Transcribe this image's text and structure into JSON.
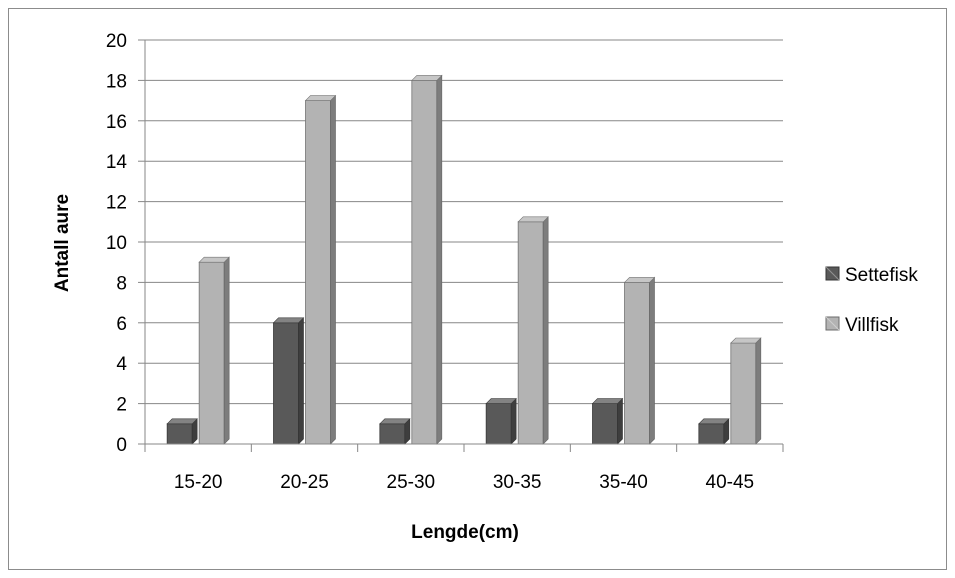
{
  "chart_data": {
    "type": "bar",
    "categories": [
      "15-20",
      "20-25",
      "25-30",
      "30-35",
      "35-40",
      "40-45"
    ],
    "series": [
      {
        "name": "Settefisk",
        "values": [
          1,
          6,
          1,
          2,
          2,
          1
        ],
        "color": "#595959"
      },
      {
        "name": "Villfisk",
        "values": [
          9,
          17,
          18,
          11,
          8,
          5
        ],
        "color": "#b3b3b3"
      }
    ],
    "title": "",
    "xlabel": "Lengde(cm)",
    "ylabel": "Antall aure",
    "ylim": [
      0,
      20
    ],
    "yticks": [
      0,
      2,
      4,
      6,
      8,
      10,
      12,
      14,
      16,
      18,
      20
    ],
    "grid": true,
    "legend_position": "right",
    "style": "3d"
  }
}
